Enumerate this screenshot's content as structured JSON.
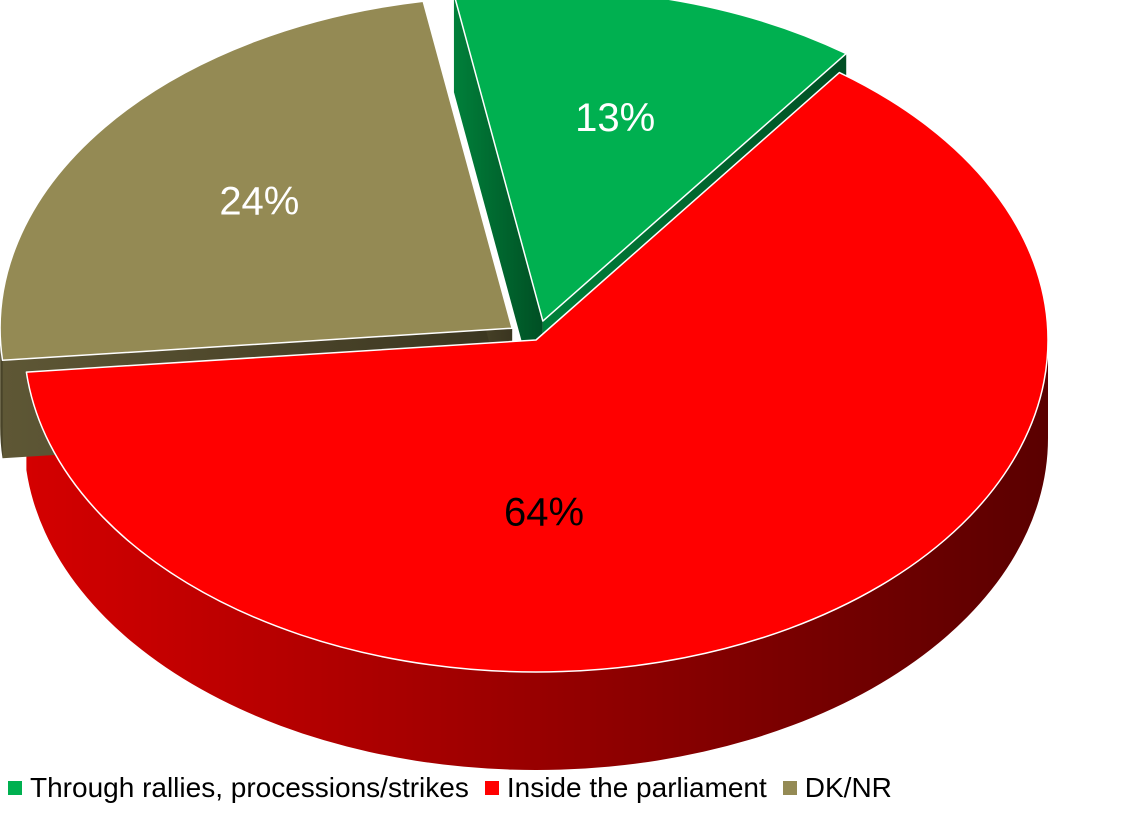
{
  "chart_data": {
    "type": "pie",
    "style": "3d-exploded",
    "slices": [
      {
        "label": "Through rallies, processions/strikes",
        "value": 13,
        "display": "13%",
        "color": "#00B050",
        "label_color": "#ffffff"
      },
      {
        "label": "Inside  the parliament",
        "value": 64,
        "display": "64%",
        "color": "#FF0000",
        "label_color": "#000000"
      },
      {
        "label": "DK/NR",
        "value": 24,
        "display": "24%",
        "color": "#948A54",
        "label_color": "#ffffff"
      }
    ],
    "legend_position": "bottom"
  }
}
